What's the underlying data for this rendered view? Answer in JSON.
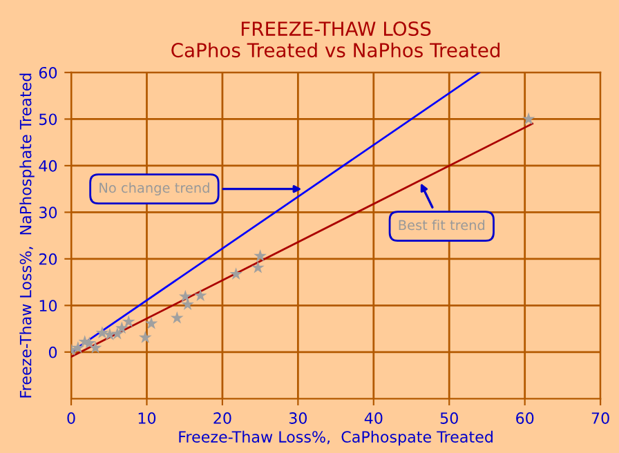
{
  "chart_data": {
    "type": "scatter",
    "title": "FREEZE-THAW LOSS\nCaPhos Treated vs NaPhos Treated",
    "xlabel": "Freeze-Thaw Loss%,  CaPhospate Treated",
    "ylabel": "Freeze-Thaw Loss%,  NaPhosphate Treated",
    "series": [
      {
        "type": "line",
        "color": "#0000ff",
        "x": [
          0,
          54
        ],
        "values": [
          0,
          60
        ]
      },
      {
        "type": "line",
        "color": "#aa0000",
        "x": [
          0,
          61
        ],
        "values": [
          -1,
          49
        ]
      },
      {
        "color": "#a0a0a0",
        "marker": "star",
        "x": [
          0,
          0.9,
          1.8,
          2.4,
          3.2,
          4.1,
          5.1,
          6.1,
          6.7,
          7.6,
          9.8,
          10.6,
          14.0,
          15.4,
          15.1,
          17.1,
          21.8,
          24.7,
          25.0,
          60.5
        ],
        "values": [
          0.4,
          0.9,
          2.2,
          1.9,
          0.9,
          4.1,
          3.7,
          3.9,
          5.1,
          6.5,
          3.1,
          6.1,
          7.3,
          10.2,
          11.9,
          12.1,
          16.7,
          18.1,
          20.6,
          50
        ]
      }
    ],
    "annotations": [
      {
        "text": "No change trend",
        "x": 31,
        "y": 35
      },
      {
        "text": "Best fit trend",
        "x": 46,
        "y": 37
      }
    ],
    "xlim": [
      0,
      70
    ],
    "ylim": [
      -10,
      60
    ],
    "xticks": [
      0,
      10,
      20,
      30,
      40,
      50,
      60,
      70
    ],
    "yticks": [
      0,
      10,
      20,
      30,
      40,
      50,
      60
    ],
    "grid": true,
    "legend": false
  }
}
